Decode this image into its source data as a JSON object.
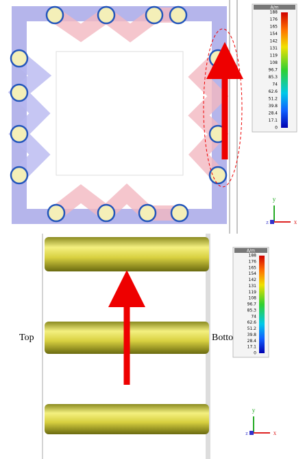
{
  "colorbars": [
    {
      "unit": "A/m",
      "ticks": [
        188,
        176,
        165,
        154,
        142,
        131,
        119,
        108,
        96.7,
        85.3,
        74,
        62.6,
        51.2,
        39.8,
        28.4,
        17.1,
        0
      ]
    },
    {
      "unit": "A/m",
      "ticks": [
        188,
        176,
        165,
        154,
        142,
        131,
        119,
        108,
        96.7,
        85.3,
        74,
        62.6,
        51.2,
        39.8,
        28.4,
        17.1,
        0
      ]
    }
  ],
  "labels": {
    "top": "Top",
    "bottom": "Bottom"
  },
  "axes": [
    {
      "y": "y",
      "z": "z",
      "x": "x"
    },
    {
      "y": "y",
      "z": "z",
      "x": "x"
    }
  ]
}
